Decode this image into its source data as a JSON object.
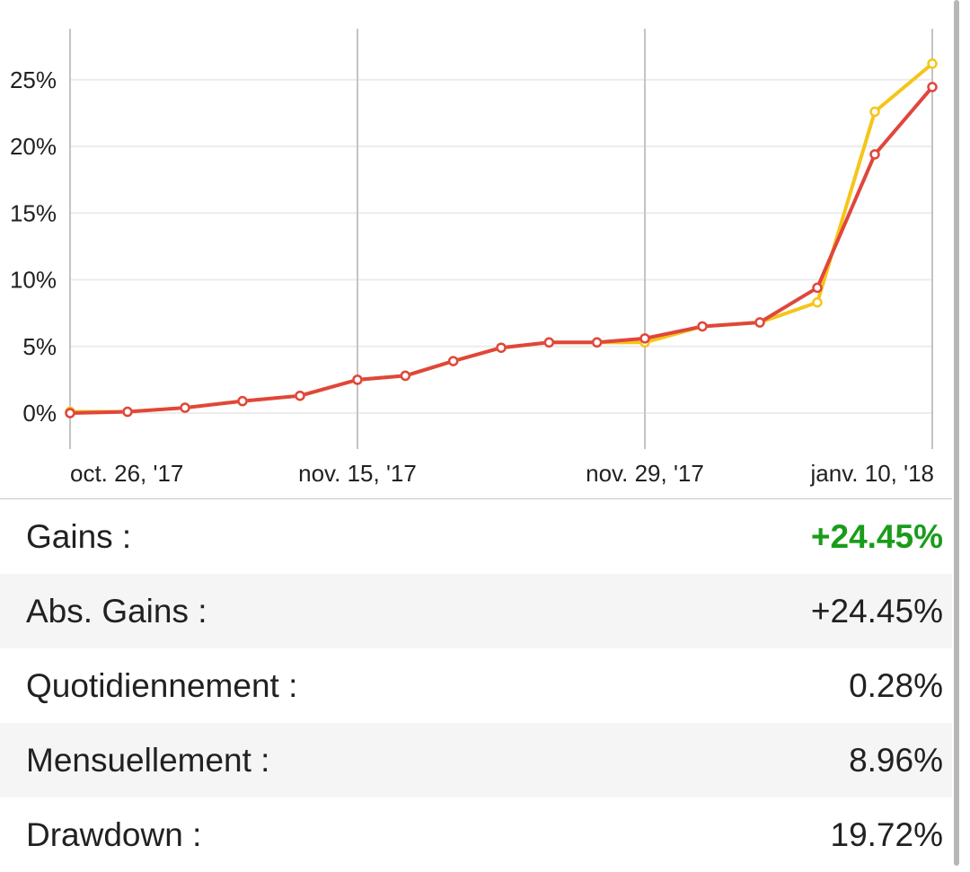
{
  "chart_data": {
    "type": "line",
    "x": [
      "2017-10-26",
      "2017-10-30",
      "2017-11-03",
      "2017-11-07",
      "2017-11-11",
      "2017-11-15",
      "2017-11-17",
      "2017-11-19",
      "2017-11-21",
      "2017-11-23",
      "2017-11-27",
      "2017-11-29",
      "2017-12-08",
      "2017-12-17",
      "2017-12-26",
      "2018-01-01",
      "2018-01-10"
    ],
    "x_tick_labels": [
      {
        "date": "2017-10-26",
        "label": "oct. 26, '17"
      },
      {
        "date": "2017-11-15",
        "label": "nov. 15, '17"
      },
      {
        "date": "2017-11-29",
        "label": "nov. 29, '17"
      },
      {
        "date": "2018-01-10",
        "label": "janv. 10, '18"
      }
    ],
    "y_tick_labels": [
      "0%",
      "5%",
      "10%",
      "15%",
      "20%",
      "25%"
    ],
    "y_ticks": [
      0,
      5,
      10,
      15,
      20,
      25
    ],
    "ylim": [
      -2.7,
      28.5
    ],
    "series": [
      {
        "color": "#f5c518",
        "values": [
          0.1,
          0.1,
          0.4,
          0.9,
          1.3,
          2.5,
          2.8,
          3.9,
          4.9,
          5.3,
          5.3,
          5.3,
          6.5,
          6.8,
          8.3,
          22.6,
          26.2
        ]
      },
      {
        "color": "#e0463c",
        "values": [
          0.0,
          0.1,
          0.4,
          0.9,
          1.3,
          2.5,
          2.8,
          3.9,
          4.9,
          5.3,
          5.3,
          5.6,
          6.5,
          6.8,
          9.4,
          19.4,
          24.45
        ]
      }
    ],
    "grid": true
  },
  "stats": {
    "gains_label": "Gains :",
    "gains_value": "+24.45%",
    "abs_gains_label": "Abs. Gains :",
    "abs_gains_value": "+24.45%",
    "daily_label": "Quotidiennement :",
    "daily_value": "0.28%",
    "monthly_label": "Mensuellement :",
    "monthly_value": "8.96%",
    "drawdown_label": "Drawdown :",
    "drawdown_value": "19.72%"
  },
  "colors": {
    "positive": "#1a9c1a",
    "row_alt_bg": "#f5f5f5"
  }
}
